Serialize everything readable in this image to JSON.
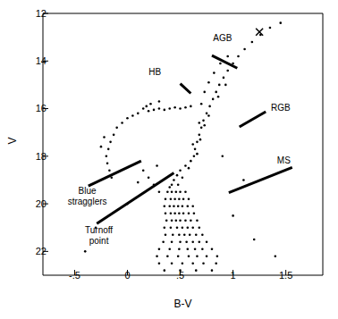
{
  "chart_data": {
    "type": "scatter",
    "x_label": "B-V",
    "y_label": "V",
    "xlim": [
      -0.8,
      1.85
    ],
    "xticks": [
      {
        "value": -0.5,
        "label": "-.5"
      },
      0,
      {
        "value": 0.5,
        "label": ".5"
      },
      1,
      1.5
    ],
    "ylim": [
      12,
      23
    ],
    "yticks": [
      12,
      14,
      16,
      18,
      20,
      22
    ],
    "series": [
      {
        "color": "#000000",
        "marker": "circle",
        "x": [
          0.38,
          0.42,
          0.46,
          0.5,
          0.55,
          0.36,
          0.41,
          0.45,
          0.49,
          0.53,
          0.58,
          0.35,
          0.4,
          0.44,
          0.48,
          0.52,
          0.57,
          0.62,
          0.36,
          0.41,
          0.45,
          0.49,
          0.53,
          0.58,
          0.63,
          0.37,
          0.42,
          0.46,
          0.5,
          0.55,
          0.6,
          0.66,
          0.35,
          0.41,
          0.47,
          0.52,
          0.57,
          0.62,
          0.68,
          0.36,
          0.43,
          0.49,
          0.54,
          0.59,
          0.65,
          0.71,
          0.34,
          0.42,
          0.5,
          0.56,
          0.62,
          0.68,
          0.75,
          0.3,
          0.4,
          0.49,
          0.57,
          0.64,
          0.71,
          0.8,
          0.28,
          0.38,
          0.48,
          0.58,
          0.66,
          0.75,
          0.85,
          0.3,
          0.42,
          0.52,
          0.62,
          0.72,
          0.84,
          0.35,
          0.5,
          0.65,
          0.8,
          0.42,
          0.44,
          0.47,
          0.5,
          0.55,
          0.6,
          0.48,
          0.4,
          0.52,
          0.58,
          0.63,
          0.64,
          0.66,
          0.68,
          0.7,
          0.72,
          0.75,
          0.78,
          0.81,
          0.84,
          0.87,
          0.91,
          0.95,
          1.0,
          1.05,
          1.11,
          1.18,
          1.26,
          1.35,
          1.45,
          0.66,
          0.69,
          0.73,
          0.77,
          0.86,
          0.93,
          0.62,
          0.68,
          0.7,
          0.73,
          0.77,
          0.82,
          0.88,
          0.95,
          0.6,
          0.55,
          0.5,
          0.45,
          0.4,
          0.35,
          0.3,
          0.25,
          0.2,
          0.15,
          0.22,
          0.3,
          0.18,
          0.1,
          0.05,
          0.0,
          -0.05,
          -0.1,
          -0.13,
          -0.16,
          -0.18,
          -0.2,
          -0.19,
          -0.17,
          -0.15,
          -0.22,
          -0.25,
          0.15,
          0.2,
          0.25,
          0.28,
          0.1,
          0.3,
          1.0,
          1.2,
          -0.3,
          1.1,
          0.0,
          -0.4,
          1.4,
          0.9
        ],
        "values": [
          19.5,
          19.5,
          19.5,
          19.5,
          19.5,
          19.8,
          19.8,
          19.8,
          19.8,
          19.8,
          19.8,
          20.1,
          20.1,
          20.1,
          20.1,
          20.1,
          20.1,
          20.1,
          20.4,
          20.4,
          20.4,
          20.4,
          20.4,
          20.4,
          20.4,
          20.7,
          20.7,
          20.7,
          20.7,
          20.7,
          20.7,
          20.7,
          21.0,
          21.0,
          21.0,
          21.0,
          21.0,
          21.0,
          21.0,
          21.3,
          21.3,
          21.3,
          21.3,
          21.3,
          21.3,
          21.3,
          21.6,
          21.6,
          21.6,
          21.6,
          21.6,
          21.6,
          21.6,
          21.9,
          21.9,
          21.9,
          21.9,
          21.9,
          21.9,
          21.9,
          22.2,
          22.2,
          22.2,
          22.2,
          22.2,
          22.2,
          22.2,
          22.5,
          22.5,
          22.5,
          22.5,
          22.5,
          22.5,
          22.8,
          22.8,
          22.8,
          22.8,
          19.2,
          19.0,
          18.8,
          18.6,
          18.4,
          18.2,
          19.2,
          19.3,
          18.9,
          18.5,
          18.0,
          17.7,
          17.4,
          17.1,
          16.8,
          16.5,
          16.2,
          15.9,
          15.6,
          15.3,
          15.0,
          14.7,
          14.4,
          14.1,
          13.8,
          13.5,
          13.2,
          12.9,
          12.6,
          12.4,
          17.9,
          17.3,
          16.7,
          16.3,
          15.5,
          15.0,
          17.5,
          16.6,
          15.8,
          15.3,
          14.9,
          14.5,
          14.1,
          13.8,
          15.9,
          15.95,
          16.0,
          15.95,
          16.0,
          16.05,
          16.0,
          16.05,
          16.1,
          16.0,
          15.8,
          15.7,
          15.9,
          16.2,
          16.3,
          16.4,
          16.6,
          16.8,
          17.1,
          17.4,
          17.7,
          18.0,
          18.3,
          18.6,
          18.9,
          17.2,
          17.6,
          18.6,
          18.9,
          19.2,
          18.4,
          19.1,
          19.5,
          20.5,
          21.5,
          21.0,
          19.0,
          20.0,
          22.0,
          22.2,
          18.0
        ]
      },
      {
        "color": "#000000",
        "marker": "cross",
        "x": [
          1.25
        ],
        "values": [
          12.78
        ]
      }
    ],
    "annotations": [
      {
        "text": "HB",
        "x": 0.26,
        "y": 14.6,
        "line": [
          [
            0.5,
            14.95
          ],
          [
            0.6,
            15.36
          ]
        ]
      },
      {
        "text": "AGB",
        "x": 0.9,
        "y": 13.17,
        "line": [
          [
            0.8,
            13.77
          ],
          [
            1.04,
            14.3
          ]
        ]
      },
      {
        "text": "RGB",
        "x": 1.45,
        "y": 16.1,
        "line": [
          [
            1.06,
            16.77
          ],
          [
            1.31,
            16.13
          ]
        ]
      },
      {
        "text": "MS",
        "x": 1.48,
        "y": 18.3,
        "line": [
          [
            0.96,
            19.53
          ],
          [
            1.56,
            18.47
          ]
        ]
      },
      {
        "text": "Blue stragglers",
        "x": -0.38,
        "y": 19.6,
        "line": [
          [
            -0.37,
            19.25
          ],
          [
            0.13,
            18.2
          ]
        ]
      },
      {
        "text": "Turnoff point",
        "x": -0.27,
        "y": 21.25,
        "line": [
          [
            -0.29,
            20.83
          ],
          [
            0.44,
            18.7
          ]
        ]
      }
    ]
  }
}
